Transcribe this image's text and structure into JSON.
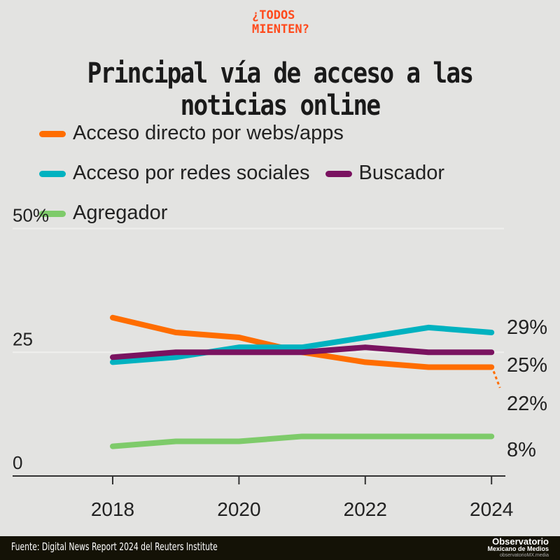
{
  "logo": {
    "line1": "¿TODOS",
    "line2": "MIENTEN?"
  },
  "footer": {
    "source": "Fuente: Digital News Report 2024 del Reuters Institute",
    "brand1": "Observatorio",
    "brand2": "Mexicano de Medios",
    "brand3": "observatorioMX.media"
  },
  "chart_data": {
    "type": "line",
    "title": "Principal vía de acceso a las noticias online",
    "x": [
      2018,
      2019,
      2020,
      2021,
      2022,
      2023,
      2024
    ],
    "xticks": [
      "2018",
      "2020",
      "2022",
      "2024"
    ],
    "yticks": [
      "0",
      "25",
      "50%"
    ],
    "ylim": [
      0,
      50
    ],
    "xlim": [
      2016.4,
      2024.2
    ],
    "grid": true,
    "legend_position": "top",
    "series": [
      {
        "name": "Acceso directo por webs/apps",
        "color": "#ff6d00",
        "values": [
          32,
          29,
          28,
          25,
          23,
          22,
          22
        ],
        "end_label": "22%"
      },
      {
        "name": "Acceso por redes sociales",
        "color": "#00b2c0",
        "values": [
          23,
          24,
          26,
          26,
          28,
          30,
          29
        ],
        "end_label": "29%"
      },
      {
        "name": "Buscador",
        "color": "#7a1360",
        "values": [
          24,
          25,
          25,
          25,
          26,
          25,
          25
        ],
        "end_label": "25%"
      },
      {
        "name": "Agregador",
        "color": "#7ecb6a",
        "values": [
          6,
          7,
          7,
          8,
          8,
          8,
          8
        ],
        "end_label": "8%"
      }
    ]
  }
}
